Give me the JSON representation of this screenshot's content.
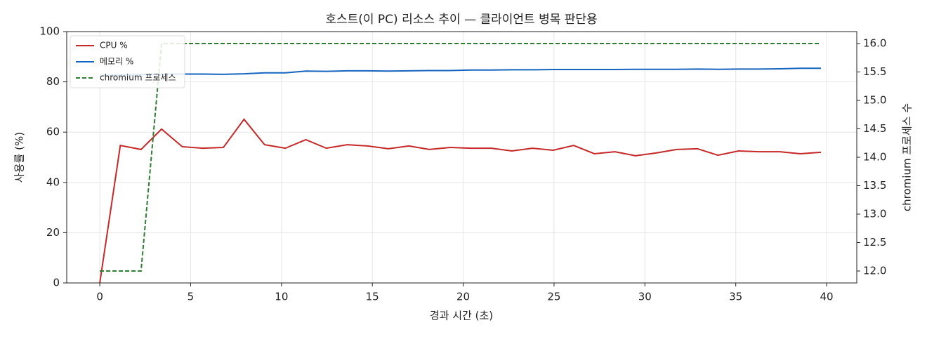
{
  "chart_data": {
    "type": "line",
    "title": "호스트(이 PC) 리소스 추이 — 클라이언트 병목 판단용",
    "xlabel": "경과 시간 (초)",
    "ylabel": "사용률 (%)",
    "y2label": "chromium 프로세스 수",
    "x": [
      0,
      1.13,
      2.27,
      3.4,
      4.54,
      5.67,
      6.8,
      7.94,
      9.07,
      10.21,
      11.34,
      12.47,
      13.61,
      14.74,
      15.88,
      17.01,
      18.14,
      19.28,
      20.41,
      21.55,
      22.68,
      23.81,
      24.95,
      26.08,
      27.22,
      28.35,
      29.48,
      30.62,
      31.75,
      32.89,
      34.02,
      35.15,
      36.29,
      37.42,
      38.56,
      39.69
    ],
    "series": [
      {
        "name": "CPU %",
        "color": "#c62828",
        "dash": false,
        "values": [
          0,
          54.7,
          53.1,
          61.2,
          54.2,
          53.6,
          53.9,
          65.1,
          55.0,
          53.6,
          57.0,
          53.6,
          55.0,
          54.5,
          53.4,
          54.5,
          53.1,
          53.9,
          53.6,
          53.6,
          52.5,
          53.6,
          52.8,
          54.7,
          51.4,
          52.2,
          50.6,
          51.7,
          53.1,
          53.4,
          50.8,
          52.5,
          52.2,
          52.2,
          51.4,
          52.0
        ]
      },
      {
        "name": "메모리 %",
        "color": "#1565c0",
        "dash": false,
        "values": [
          82.5,
          82.7,
          82.9,
          83.0,
          83.1,
          83.1,
          83.0,
          83.2,
          83.6,
          83.6,
          84.3,
          84.2,
          84.4,
          84.4,
          84.3,
          84.4,
          84.5,
          84.5,
          84.7,
          84.7,
          84.8,
          84.8,
          84.9,
          84.9,
          84.9,
          84.9,
          85.0,
          85.0,
          85.0,
          85.1,
          85.0,
          85.1,
          85.1,
          85.2,
          85.4,
          85.4
        ]
      },
      {
        "name": "chromium 프로세스",
        "color": "#2e7d32",
        "dash": true,
        "axis": "y2",
        "values": [
          12,
          12,
          12,
          16,
          16,
          16,
          16,
          16,
          16,
          16,
          16,
          16,
          16,
          16,
          16,
          16,
          16,
          16,
          16,
          16,
          16,
          16,
          16,
          16,
          16,
          16,
          16,
          16,
          16,
          16,
          16,
          16,
          16,
          16,
          16,
          16
        ]
      }
    ],
    "xlim": [
      -1.82,
      41.66
    ],
    "xticks": [
      0,
      5,
      10,
      15,
      20,
      25,
      30,
      35,
      40
    ],
    "ylim": [
      0,
      100
    ],
    "yticks": [
      0,
      20,
      40,
      60,
      80,
      100
    ],
    "y2lim": [
      11.79,
      16.21
    ],
    "y2ticks": [
      {
        "value": 12,
        "label": "12.0"
      },
      {
        "value": 12.5,
        "label": "12.5"
      },
      {
        "value": 13,
        "label": "13.0"
      },
      {
        "value": 13.5,
        "label": "13.5"
      },
      {
        "value": 14,
        "label": "14.0"
      },
      {
        "value": 14.5,
        "label": "14.5"
      },
      {
        "value": 15,
        "label": "15.0"
      },
      {
        "value": 15.5,
        "label": "15.5"
      },
      {
        "value": 16,
        "label": "16.0"
      }
    ],
    "grid": true,
    "legend": "upper-left"
  }
}
